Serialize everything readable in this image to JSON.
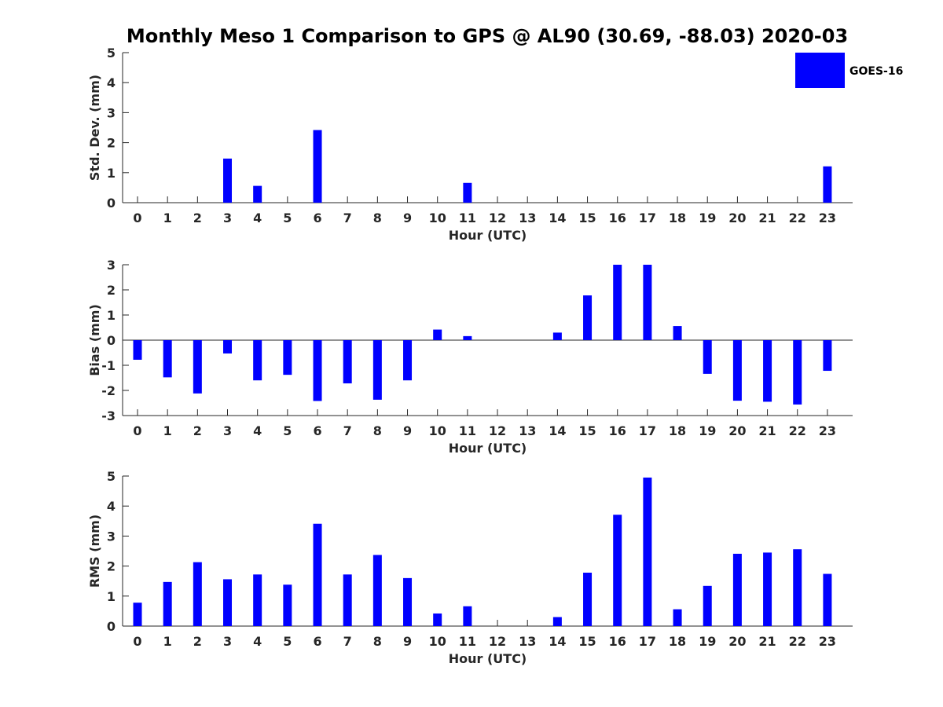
{
  "title": "Monthly Meso 1 Comparison to GPS @ AL90 (30.69, -88.03) 2020-03",
  "legend": {
    "label": "GOES-16",
    "placement": "top-right",
    "color": "#0000ff"
  },
  "bar_color": "#0000ff",
  "chart_data": [
    {
      "type": "bar",
      "ylabel": "Std. Dev. (mm)",
      "xlabel": "Hour (UTC)",
      "categories": [
        "0",
        "1",
        "2",
        "3",
        "4",
        "5",
        "6",
        "7",
        "8",
        "9",
        "10",
        "11",
        "12",
        "13",
        "14",
        "15",
        "16",
        "17",
        "18",
        "19",
        "20",
        "21",
        "22",
        "23"
      ],
      "yticks": [
        "0",
        "1",
        "2",
        "3",
        "4",
        "5"
      ],
      "ylim": [
        0,
        5
      ],
      "values": [
        0,
        0,
        0,
        1.47,
        0.56,
        0,
        2.42,
        0,
        0,
        0,
        0,
        0.66,
        0,
        0,
        0,
        0,
        0,
        0,
        0,
        0,
        0,
        0,
        0,
        1.21
      ]
    },
    {
      "type": "bar",
      "ylabel": "Bias (mm)",
      "xlabel": "Hour (UTC)",
      "categories": [
        "0",
        "1",
        "2",
        "3",
        "4",
        "5",
        "6",
        "7",
        "8",
        "9",
        "10",
        "11",
        "12",
        "13",
        "14",
        "15",
        "16",
        "17",
        "18",
        "19",
        "20",
        "21",
        "22",
        "23"
      ],
      "yticks": [
        "-3",
        "-2",
        "-1",
        "0",
        "1",
        "2",
        "3"
      ],
      "ylim": [
        -3,
        3
      ],
      "values": [
        -0.78,
        -1.48,
        -2.12,
        -0.53,
        -1.6,
        -1.38,
        -2.42,
        -1.72,
        -2.37,
        -1.6,
        0.42,
        0.16,
        0,
        0,
        0.3,
        1.78,
        3.0,
        3.0,
        0.56,
        -1.34,
        -2.41,
        -2.45,
        -2.56,
        -1.22
      ]
    },
    {
      "type": "bar",
      "ylabel": "RMS (mm)",
      "xlabel": "Hour (UTC)",
      "categories": [
        "0",
        "1",
        "2",
        "3",
        "4",
        "5",
        "6",
        "7",
        "8",
        "9",
        "10",
        "11",
        "12",
        "13",
        "14",
        "15",
        "16",
        "17",
        "18",
        "19",
        "20",
        "21",
        "22",
        "23"
      ],
      "yticks": [
        "0",
        "1",
        "2",
        "3",
        "4",
        "5"
      ],
      "ylim": [
        0,
        5
      ],
      "values": [
        0.78,
        1.47,
        2.13,
        1.56,
        1.72,
        1.38,
        3.41,
        1.72,
        2.37,
        1.6,
        0.42,
        0.66,
        0,
        0,
        0.3,
        1.78,
        3.71,
        4.95,
        0.56,
        1.34,
        2.41,
        2.45,
        2.56,
        1.74
      ]
    }
  ]
}
